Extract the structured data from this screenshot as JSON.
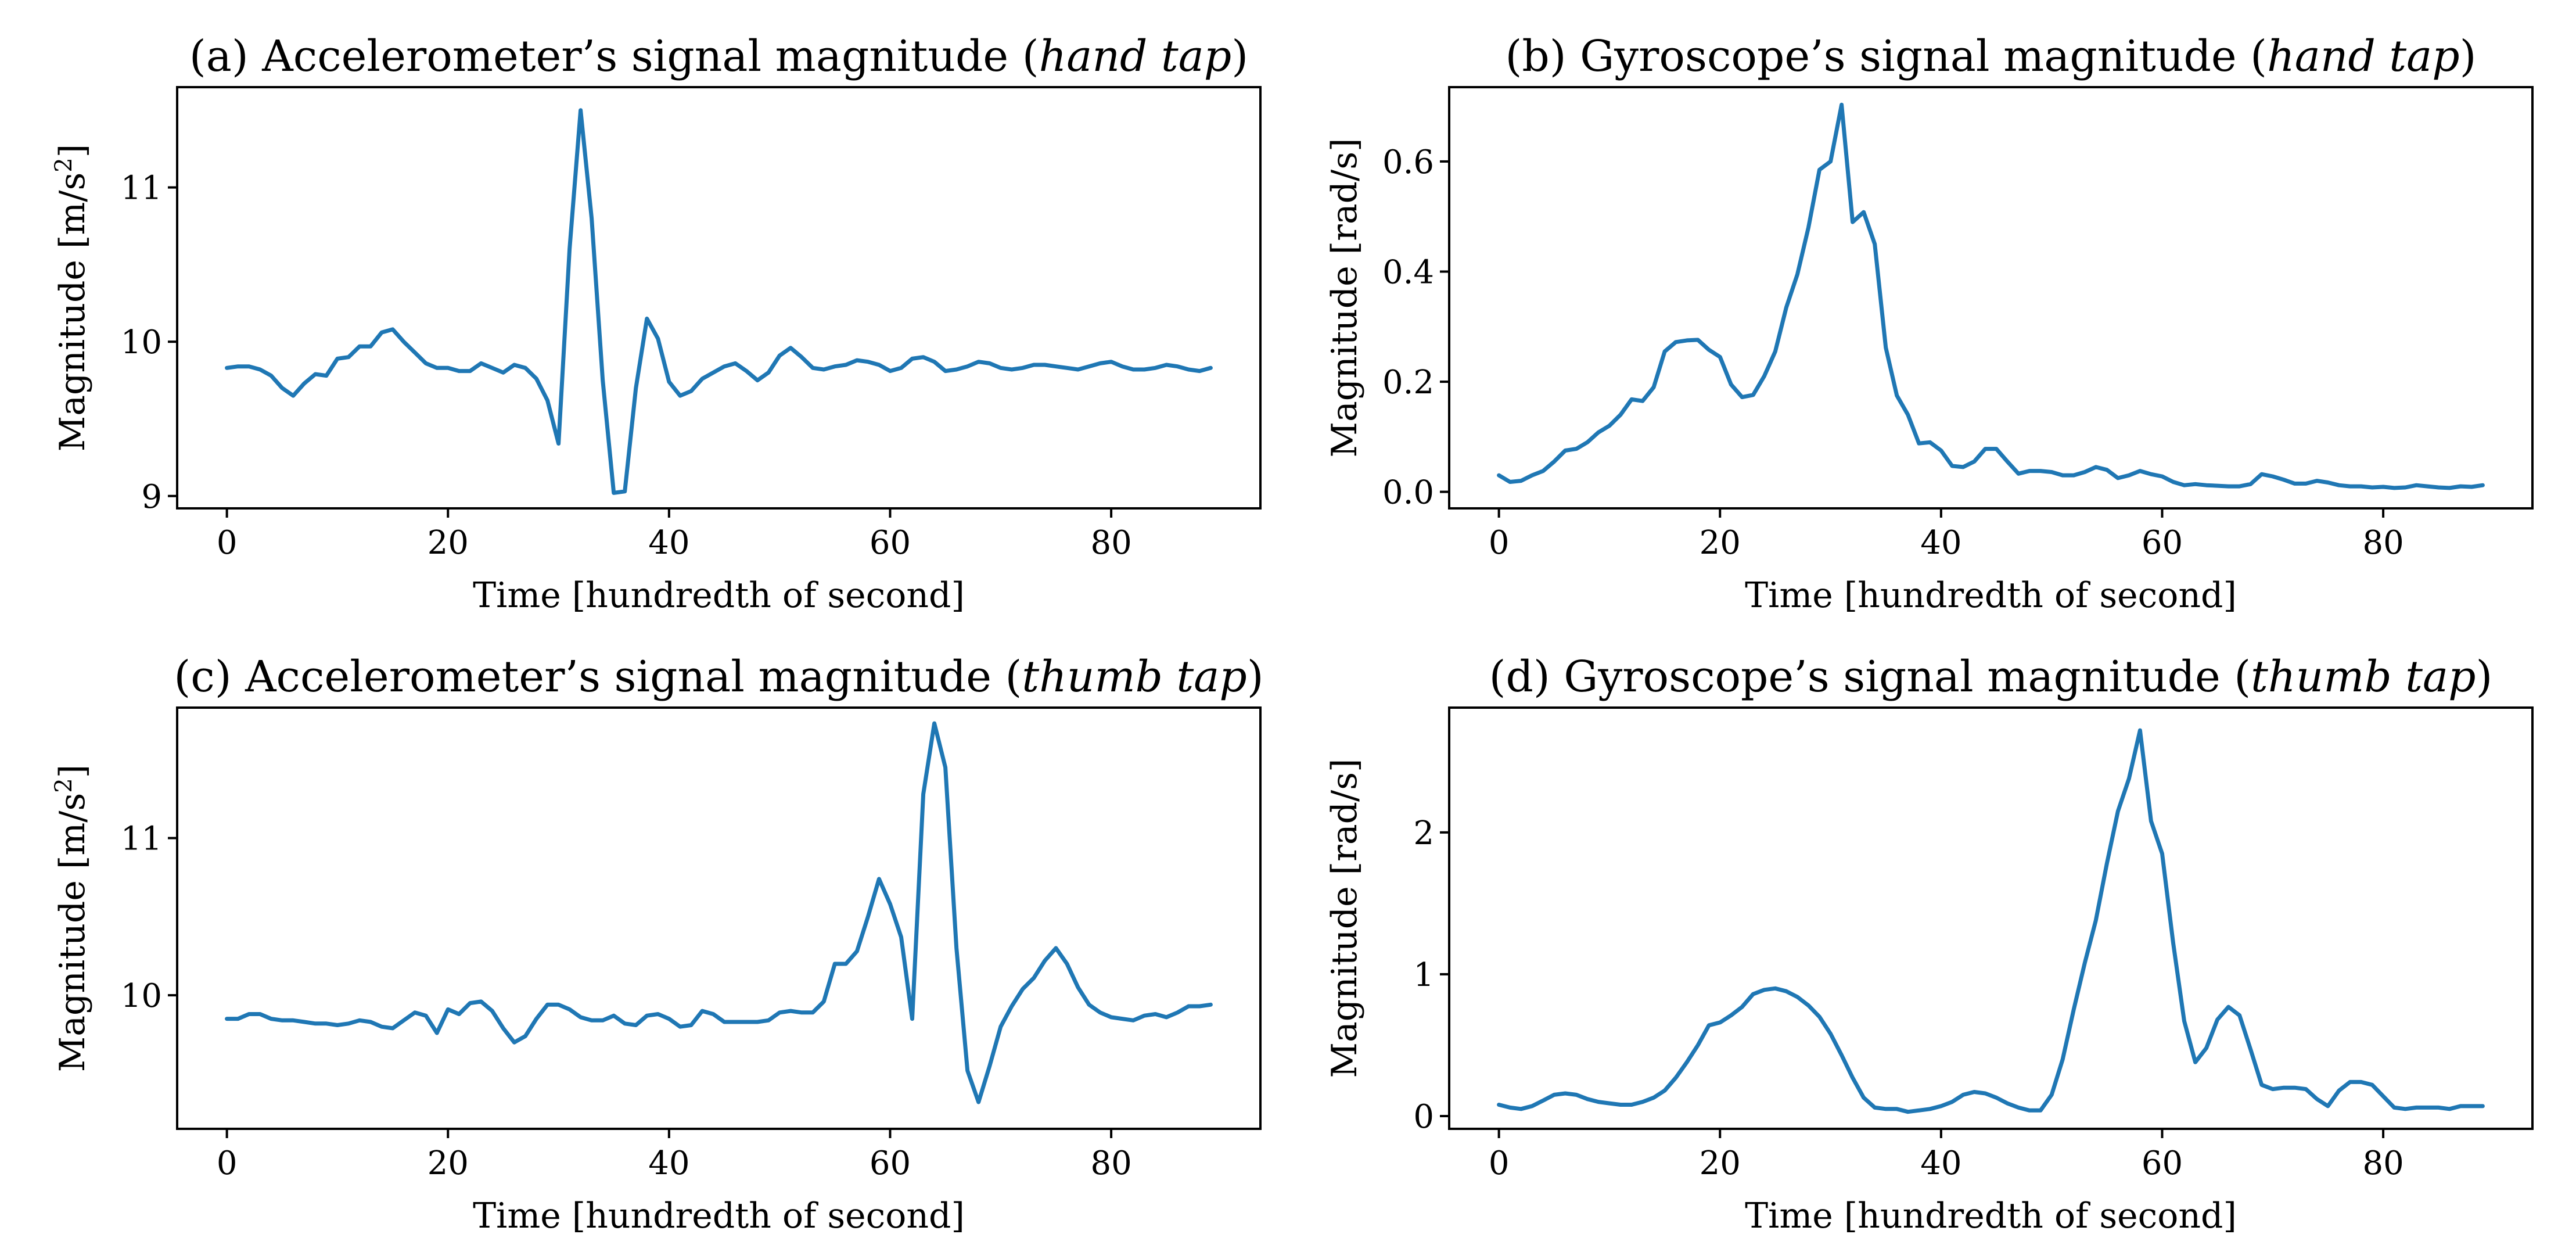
{
  "chart_data": [
    {
      "type": "line",
      "title_prefix": "(a) Accelerometer’s signal magnitude (",
      "title_italic": "hand tap",
      "title_suffix": ")",
      "xlabel": "Time [hundredth of second]",
      "ylabel_main": "Magnitude [m/s",
      "ylabel_sup": "2",
      "ylabel_end": "]",
      "xlim": [
        -4.5,
        93.5
      ],
      "ylim": [
        8.92,
        11.65
      ],
      "xticks": [
        0,
        20,
        40,
        60,
        80
      ],
      "yticks": [
        9,
        10,
        11
      ],
      "x": [
        0,
        1,
        2,
        3,
        4,
        5,
        6,
        7,
        8,
        9,
        10,
        11,
        12,
        13,
        14,
        15,
        16,
        17,
        18,
        19,
        20,
        21,
        22,
        23,
        24,
        25,
        26,
        27,
        28,
        29,
        30,
        31,
        32,
        33,
        34,
        35,
        36,
        37,
        38,
        39,
        40,
        41,
        42,
        43,
        44,
        45,
        46,
        47,
        48,
        49,
        50,
        51,
        52,
        53,
        54,
        55,
        56,
        57,
        58,
        59,
        60,
        61,
        62,
        63,
        64,
        65,
        66,
        67,
        68,
        69,
        70,
        71,
        72,
        73,
        74,
        75,
        76,
        77,
        78,
        79,
        80,
        81,
        82,
        83,
        84,
        85,
        86,
        87,
        88,
        89
      ],
      "series": [
        {
          "name": "accelerometer",
          "values": [
            9.83,
            9.84,
            9.84,
            9.82,
            9.78,
            9.7,
            9.65,
            9.73,
            9.79,
            9.78,
            9.89,
            9.9,
            9.97,
            9.97,
            10.06,
            10.08,
            10.0,
            9.93,
            9.86,
            9.83,
            9.83,
            9.81,
            9.81,
            9.86,
            9.83,
            9.8,
            9.85,
            9.83,
            9.76,
            9.62,
            9.34,
            10.6,
            11.5,
            10.8,
            9.75,
            9.02,
            9.03,
            9.7,
            10.15,
            10.02,
            9.74,
            9.65,
            9.68,
            9.76,
            9.8,
            9.84,
            9.86,
            9.81,
            9.75,
            9.8,
            9.91,
            9.96,
            9.9,
            9.83,
            9.82,
            9.84,
            9.85,
            9.88,
            9.87,
            9.85,
            9.81,
            9.83,
            9.89,
            9.9,
            9.87,
            9.81,
            9.82,
            9.84,
            9.87,
            9.86,
            9.83,
            9.82,
            9.83,
            9.85,
            9.85,
            9.84,
            9.83,
            9.82,
            9.84,
            9.86,
            9.87,
            9.84,
            9.82,
            9.82,
            9.83,
            9.85,
            9.84,
            9.82,
            9.81,
            9.83
          ]
        }
      ]
    },
    {
      "type": "line",
      "title_prefix": "(b) Gyroscope’s signal magnitude (",
      "title_italic": "hand tap",
      "title_suffix": ")",
      "xlabel": "Time [hundredth of second]",
      "ylabel_main": "Magnitude [rad/s]",
      "ylabel_sup": "",
      "ylabel_end": "",
      "xlim": [
        -4.5,
        93.5
      ],
      "ylim": [
        -0.03,
        0.735
      ],
      "xticks": [
        0,
        20,
        40,
        60,
        80
      ],
      "yticks": [
        0.0,
        0.2,
        0.4,
        0.6
      ],
      "ytick_labels": [
        "0.0",
        "0.2",
        "0.4",
        "0.6"
      ],
      "x": [
        0,
        1,
        2,
        3,
        4,
        5,
        6,
        7,
        8,
        9,
        10,
        11,
        12,
        13,
        14,
        15,
        16,
        17,
        18,
        19,
        20,
        21,
        22,
        23,
        24,
        25,
        26,
        27,
        28,
        29,
        30,
        31,
        32,
        33,
        34,
        35,
        36,
        37,
        38,
        39,
        40,
        41,
        42,
        43,
        44,
        45,
        46,
        47,
        48,
        49,
        50,
        51,
        52,
        53,
        54,
        55,
        56,
        57,
        58,
        59,
        60,
        61,
        62,
        63,
        64,
        65,
        66,
        67,
        68,
        69,
        70,
        71,
        72,
        73,
        74,
        75,
        76,
        77,
        78,
        79,
        80,
        81,
        82,
        83,
        84,
        85,
        86,
        87,
        88,
        89
      ],
      "series": [
        {
          "name": "gyroscope",
          "values": [
            0.03,
            0.018,
            0.02,
            0.03,
            0.038,
            0.055,
            0.075,
            0.078,
            0.09,
            0.108,
            0.12,
            0.14,
            0.168,
            0.165,
            0.19,
            0.255,
            0.272,
            0.275,
            0.276,
            0.258,
            0.245,
            0.195,
            0.172,
            0.176,
            0.21,
            0.255,
            0.335,
            0.395,
            0.48,
            0.585,
            0.6,
            0.703,
            0.49,
            0.508,
            0.45,
            0.262,
            0.175,
            0.14,
            0.088,
            0.09,
            0.075,
            0.047,
            0.045,
            0.055,
            0.078,
            0.078,
            0.055,
            0.033,
            0.038,
            0.038,
            0.036,
            0.03,
            0.03,
            0.036,
            0.045,
            0.04,
            0.025,
            0.03,
            0.038,
            0.032,
            0.028,
            0.018,
            0.012,
            0.014,
            0.012,
            0.011,
            0.01,
            0.01,
            0.014,
            0.032,
            0.028,
            0.022,
            0.015,
            0.015,
            0.02,
            0.017,
            0.012,
            0.01,
            0.01,
            0.008,
            0.009,
            0.007,
            0.008,
            0.012,
            0.01,
            0.008,
            0.007,
            0.01,
            0.009,
            0.012
          ]
        }
      ]
    },
    {
      "type": "line",
      "title_prefix": "(c) Accelerometer’s signal magnitude (",
      "title_italic": "thumb tap",
      "title_suffix": ")",
      "xlabel": "Time [hundredth of second]",
      "ylabel_main": "Magnitude [m/s",
      "ylabel_sup": "2",
      "ylabel_end": "]",
      "xlim": [
        -4.5,
        93.5
      ],
      "ylim": [
        9.15,
        11.83
      ],
      "xticks": [
        0,
        20,
        40,
        60,
        80
      ],
      "yticks": [
        10,
        11
      ],
      "x": [
        0,
        1,
        2,
        3,
        4,
        5,
        6,
        7,
        8,
        9,
        10,
        11,
        12,
        13,
        14,
        15,
        16,
        17,
        18,
        19,
        20,
        21,
        22,
        23,
        24,
        25,
        26,
        27,
        28,
        29,
        30,
        31,
        32,
        33,
        34,
        35,
        36,
        37,
        38,
        39,
        40,
        41,
        42,
        43,
        44,
        45,
        46,
        47,
        48,
        49,
        50,
        51,
        52,
        53,
        54,
        55,
        56,
        57,
        58,
        59,
        60,
        61,
        62,
        63,
        64,
        65,
        66,
        67,
        68,
        69,
        70,
        71,
        72,
        73,
        74,
        75,
        76,
        77,
        78,
        79,
        80,
        81,
        82,
        83,
        84,
        85,
        86,
        87,
        88,
        89
      ],
      "series": [
        {
          "name": "accelerometer",
          "values": [
            9.85,
            9.85,
            9.88,
            9.88,
            9.85,
            9.84,
            9.84,
            9.83,
            9.82,
            9.82,
            9.81,
            9.82,
            9.84,
            9.83,
            9.8,
            9.79,
            9.84,
            9.89,
            9.87,
            9.76,
            9.91,
            9.88,
            9.95,
            9.96,
            9.9,
            9.79,
            9.7,
            9.74,
            9.85,
            9.94,
            9.94,
            9.91,
            9.86,
            9.84,
            9.84,
            9.87,
            9.82,
            9.81,
            9.87,
            9.88,
            9.85,
            9.8,
            9.81,
            9.9,
            9.88,
            9.83,
            9.83,
            9.83,
            9.83,
            9.84,
            9.89,
            9.9,
            9.89,
            9.89,
            9.96,
            10.2,
            10.2,
            10.28,
            10.5,
            10.74,
            10.58,
            10.37,
            9.85,
            11.28,
            11.73,
            11.45,
            10.3,
            9.52,
            9.32,
            9.55,
            9.8,
            9.93,
            10.04,
            10.11,
            10.22,
            10.3,
            10.2,
            10.05,
            9.94,
            9.89,
            9.86,
            9.85,
            9.84,
            9.87,
            9.88,
            9.86,
            9.89,
            9.93,
            9.93,
            9.94
          ]
        }
      ]
    },
    {
      "type": "line",
      "title_prefix": "(d) Gyroscope’s signal magnitude (",
      "title_italic": "thumb tap",
      "title_suffix": ")",
      "xlabel": "Time [hundredth of second]",
      "ylabel_main": "Magnitude [rad/s]",
      "ylabel_sup": "",
      "ylabel_end": "",
      "xlim": [
        -4.5,
        93.5
      ],
      "ylim": [
        -0.09,
        2.88
      ],
      "xticks": [
        0,
        20,
        40,
        60,
        80
      ],
      "yticks": [
        0,
        1,
        2
      ],
      "x": [
        0,
        1,
        2,
        3,
        4,
        5,
        6,
        7,
        8,
        9,
        10,
        11,
        12,
        13,
        14,
        15,
        16,
        17,
        18,
        19,
        20,
        21,
        22,
        23,
        24,
        25,
        26,
        27,
        28,
        29,
        30,
        31,
        32,
        33,
        34,
        35,
        36,
        37,
        38,
        39,
        40,
        41,
        42,
        43,
        44,
        45,
        46,
        47,
        48,
        49,
        50,
        51,
        52,
        53,
        54,
        55,
        56,
        57,
        58,
        59,
        60,
        61,
        62,
        63,
        64,
        65,
        66,
        67,
        68,
        69,
        70,
        71,
        72,
        73,
        74,
        75,
        76,
        77,
        78,
        79,
        80,
        81,
        82,
        83,
        84,
        85,
        86,
        87,
        88,
        89
      ],
      "series": [
        {
          "name": "gyroscope",
          "values": [
            0.08,
            0.06,
            0.05,
            0.07,
            0.11,
            0.15,
            0.16,
            0.15,
            0.12,
            0.1,
            0.09,
            0.08,
            0.08,
            0.1,
            0.13,
            0.18,
            0.27,
            0.38,
            0.5,
            0.64,
            0.66,
            0.71,
            0.77,
            0.86,
            0.89,
            0.9,
            0.88,
            0.84,
            0.78,
            0.7,
            0.58,
            0.43,
            0.27,
            0.13,
            0.06,
            0.05,
            0.05,
            0.03,
            0.04,
            0.05,
            0.07,
            0.1,
            0.15,
            0.17,
            0.16,
            0.13,
            0.09,
            0.06,
            0.04,
            0.04,
            0.15,
            0.4,
            0.75,
            1.08,
            1.38,
            1.78,
            2.15,
            2.38,
            2.72,
            2.08,
            1.85,
            1.22,
            0.67,
            0.38,
            0.48,
            0.68,
            0.77,
            0.71,
            0.47,
            0.22,
            0.19,
            0.2,
            0.2,
            0.19,
            0.12,
            0.07,
            0.18,
            0.24,
            0.24,
            0.22,
            0.14,
            0.06,
            0.05,
            0.06,
            0.06,
            0.06,
            0.05,
            0.07,
            0.07,
            0.07
          ]
        }
      ]
    }
  ]
}
